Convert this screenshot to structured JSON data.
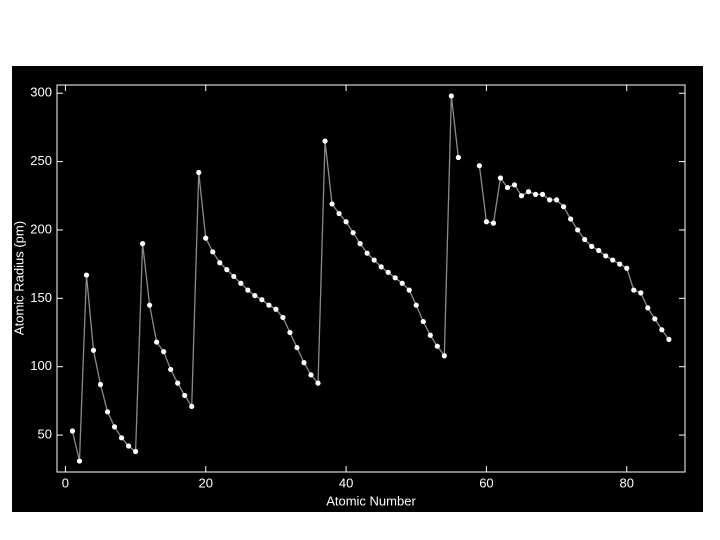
{
  "chart_data": {
    "type": "line",
    "x_label": "Atomic Number",
    "y_label": "Atomic Radius (pm)",
    "x": [
      1,
      2,
      3,
      4,
      5,
      6,
      7,
      8,
      9,
      10,
      11,
      12,
      13,
      14,
      15,
      16,
      17,
      18,
      19,
      20,
      21,
      22,
      23,
      24,
      25,
      26,
      27,
      28,
      29,
      30,
      31,
      32,
      33,
      34,
      35,
      36,
      37,
      38,
      39,
      40,
      41,
      42,
      43,
      44,
      45,
      46,
      47,
      48,
      49,
      50,
      51,
      52,
      53,
      54,
      55,
      56,
      57,
      58,
      59,
      60,
      61,
      62,
      63,
      64,
      65,
      66,
      67,
      68,
      69,
      70,
      71,
      72,
      73,
      74,
      75,
      76,
      77,
      78,
      79,
      80,
      81,
      82,
      83,
      84,
      85,
      86
    ],
    "series": [
      {
        "color": "#ffffff",
        "line_color": "#8a8a8a",
        "values": [
          53,
          31,
          167,
          112,
          87,
          67,
          56,
          48,
          42,
          38,
          190,
          145,
          118,
          111,
          98,
          88,
          79,
          71,
          242,
          194,
          184,
          176,
          171,
          166,
          161,
          156,
          152,
          149,
          145,
          142,
          136,
          125,
          114,
          103,
          94,
          88,
          265,
          219,
          212,
          206,
          198,
          190,
          183,
          178,
          173,
          169,
          165,
          161,
          156,
          145,
          133,
          123,
          115,
          108,
          298,
          253,
          null,
          null,
          247,
          206,
          205,
          238,
          231,
          233,
          225,
          228,
          226,
          226,
          222,
          222,
          217,
          208,
          200,
          193,
          188,
          185,
          181,
          178,
          175,
          172,
          156,
          154,
          143,
          135,
          127,
          120
        ]
      }
    ],
    "xlim": [
      -1.2,
      88.3
    ],
    "ylim": [
      23,
      306
    ],
    "xticks": [
      0,
      20,
      40,
      60,
      80
    ],
    "yticks": [
      50,
      100,
      150,
      200,
      250,
      300
    ]
  }
}
